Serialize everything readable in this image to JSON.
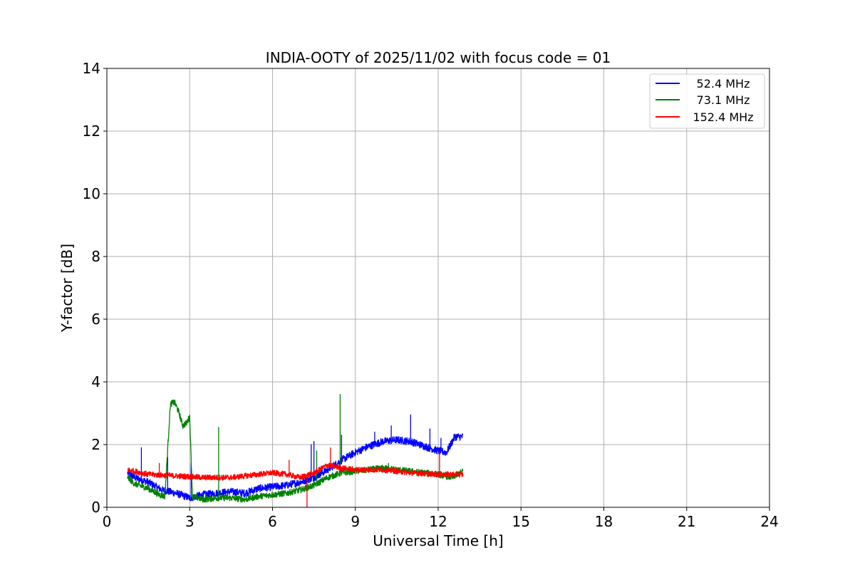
{
  "chart_data": {
    "type": "line",
    "title": "INDIA-OOTY of 2025/11/02 with focus code = 01",
    "xlabel": "Universal Time [h]",
    "ylabel": "Y-factor [dB]",
    "xlim": [
      0,
      24
    ],
    "ylim": [
      0,
      14
    ],
    "xticks": [
      0,
      3,
      6,
      9,
      12,
      15,
      18,
      21,
      24
    ],
    "yticks": [
      0,
      2,
      4,
      6,
      8,
      10,
      12,
      14
    ],
    "grid": true,
    "legend_position": "top-right",
    "series": [
      {
        "name": "52.4 MHz",
        "color": "#0000ff",
        "noise": 0.12,
        "x": [
          0.75,
          1.0,
          1.5,
          2.0,
          2.5,
          3.0,
          3.5,
          4.0,
          4.5,
          5.0,
          5.5,
          6.0,
          6.5,
          7.0,
          7.5,
          8.0,
          8.5,
          9.0,
          9.5,
          10.0,
          10.5,
          11.0,
          11.5,
          12.0,
          12.3,
          12.6,
          12.9
        ],
        "y": [
          1.1,
          0.95,
          0.8,
          0.55,
          0.45,
          0.3,
          0.4,
          0.45,
          0.5,
          0.45,
          0.6,
          0.65,
          0.7,
          0.8,
          0.95,
          1.2,
          1.5,
          1.75,
          1.95,
          2.1,
          2.15,
          2.1,
          1.95,
          1.8,
          1.75,
          2.25,
          2.25
        ],
        "spikes": [
          [
            1.25,
            1.9
          ],
          [
            2.2,
            1.6
          ],
          [
            3.05,
            1.4
          ],
          [
            7.4,
            2.0
          ],
          [
            7.5,
            2.1
          ],
          [
            8.5,
            2.3
          ],
          [
            9.7,
            2.4
          ],
          [
            10.3,
            2.6
          ],
          [
            11.0,
            2.95
          ],
          [
            11.7,
            2.5
          ],
          [
            12.1,
            2.2
          ]
        ]
      },
      {
        "name": "73.1 MHz",
        "color": "#008000",
        "noise": 0.1,
        "x": [
          0.75,
          1.0,
          1.5,
          1.9,
          2.1,
          2.3,
          2.45,
          2.6,
          2.75,
          2.9,
          3.0,
          3.1,
          3.5,
          4.0,
          4.5,
          5.0,
          5.5,
          6.0,
          6.5,
          7.0,
          7.5,
          8.0,
          8.5,
          9.0,
          9.5,
          10.0,
          10.5,
          11.0,
          11.5,
          12.0,
          12.5,
          12.9
        ],
        "y": [
          0.95,
          0.75,
          0.6,
          0.4,
          0.35,
          3.3,
          3.35,
          3.05,
          2.6,
          2.7,
          2.9,
          0.35,
          0.25,
          0.3,
          0.3,
          0.25,
          0.35,
          0.4,
          0.45,
          0.55,
          0.7,
          0.95,
          1.1,
          1.15,
          1.2,
          1.25,
          1.2,
          1.15,
          1.1,
          1.05,
          0.95,
          1.15
        ],
        "spikes": [
          [
            4.05,
            2.55
          ],
          [
            7.6,
            1.8
          ],
          [
            8.45,
            3.6
          ],
          [
            10.2,
            1.4
          ]
        ]
      },
      {
        "name": "152.4 MHz",
        "color": "#ff0000",
        "noise": 0.09,
        "x": [
          0.75,
          1.5,
          2.5,
          3.5,
          4.5,
          5.0,
          5.5,
          6.0,
          6.5,
          7.0,
          7.5,
          8.0,
          8.5,
          9.0,
          10.0,
          11.0,
          12.0,
          12.9
        ],
        "y": [
          1.2,
          1.05,
          1.0,
          0.95,
          0.95,
          1.0,
          1.05,
          1.1,
          1.05,
          0.95,
          1.1,
          1.35,
          1.25,
          1.2,
          1.2,
          1.1,
          1.05,
          1.05
        ],
        "spikes": [
          [
            1.9,
            1.4
          ],
          [
            6.6,
            1.5
          ],
          [
            8.1,
            1.9
          ],
          [
            12.05,
            1.75
          ]
        ],
        "dips": [
          [
            7.25,
            0.0
          ]
        ]
      }
    ]
  }
}
